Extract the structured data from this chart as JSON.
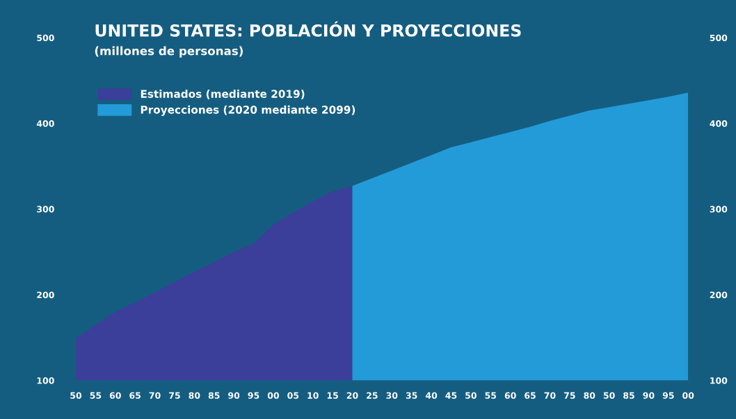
{
  "chart_data": {
    "type": "area",
    "title": "UNITED STATES: POBLACIÓN Y PROYECCIONES",
    "subtitle": "(millones de personas)",
    "categories": [
      "50",
      "55",
      "60",
      "65",
      "70",
      "75",
      "80",
      "85",
      "90",
      "95",
      "00",
      "05",
      "10",
      "15",
      "20",
      "25",
      "30",
      "35",
      "40",
      "45",
      "50",
      "55",
      "60",
      "65",
      "70",
      "75",
      "80",
      "50",
      "85",
      "90",
      "95",
      "00"
    ],
    "series": [
      {
        "name": "Estimados (mediante 2019)",
        "color": "#3b3f9a",
        "values": [
          149,
          165,
          180,
          191,
          203,
          215,
          227,
          238,
          250,
          260,
          282,
          296,
          309,
          321,
          327,
          null,
          null,
          null,
          null,
          null,
          null,
          null,
          null,
          null,
          null,
          null,
          null,
          null,
          null,
          null,
          null,
          null
        ]
      },
      {
        "name": "Proyecciones (2020 mediante 2099)",
        "color": "#239bd8",
        "values": [
          null,
          null,
          null,
          null,
          null,
          null,
          null,
          null,
          null,
          null,
          null,
          null,
          null,
          null,
          327,
          336,
          345,
          354,
          363,
          372,
          378,
          384,
          390,
          396,
          403,
          409,
          415,
          419,
          423,
          427,
          431,
          436
        ]
      }
    ],
    "ylim": [
      100,
      500
    ],
    "yticks": [
      100,
      200,
      300,
      400,
      500
    ],
    "y2lim": [
      100,
      500
    ],
    "y2ticks": [
      100,
      200,
      300,
      400,
      500
    ],
    "grid": false,
    "legend": "top left"
  }
}
